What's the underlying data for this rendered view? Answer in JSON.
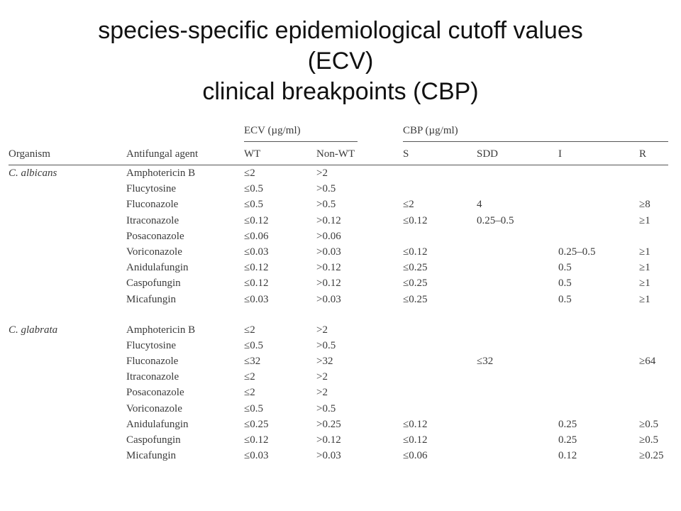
{
  "title": {
    "line1": "species-specific epidemiological cutoff values",
    "line2": "(ECV)",
    "line3": "clinical breakpoints (CBP)"
  },
  "table": {
    "group_headers": {
      "ecv": "ECV (µg/ml)",
      "cbp": "CBP (µg/ml)"
    },
    "columns": {
      "organism": "Organism",
      "agent": "Antifungal agent",
      "wt": "WT",
      "nonwt": "Non-WT",
      "s": "S",
      "sdd": "SDD",
      "i": "I",
      "r": "R"
    },
    "groups": [
      {
        "organism": "C. albicans",
        "rows": [
          {
            "agent": "Amphotericin B",
            "wt": "≤2",
            "nonwt": ">2",
            "s": "",
            "sdd": "",
            "i": "",
            "r": ""
          },
          {
            "agent": "Flucytosine",
            "wt": "≤0.5",
            "nonwt": ">0.5",
            "s": "",
            "sdd": "",
            "i": "",
            "r": ""
          },
          {
            "agent": "Fluconazole",
            "wt": "≤0.5",
            "nonwt": ">0.5",
            "s": "≤2",
            "sdd": "4",
            "i": "",
            "r": "≥8"
          },
          {
            "agent": "Itraconazole",
            "wt": "≤0.12",
            "nonwt": ">0.12",
            "s": "≤0.12",
            "sdd": "0.25–0.5",
            "i": "",
            "r": "≥1"
          },
          {
            "agent": "Posaconazole",
            "wt": "≤0.06",
            "nonwt": ">0.06",
            "s": "",
            "sdd": "",
            "i": "",
            "r": ""
          },
          {
            "agent": "Voriconazole",
            "wt": "≤0.03",
            "nonwt": ">0.03",
            "s": "≤0.12",
            "sdd": "",
            "i": "0.25–0.5",
            "r": "≥1"
          },
          {
            "agent": "Anidulafungin",
            "wt": "≤0.12",
            "nonwt": ">0.12",
            "s": "≤0.25",
            "sdd": "",
            "i": "0.5",
            "r": "≥1"
          },
          {
            "agent": "Caspofungin",
            "wt": "≤0.12",
            "nonwt": ">0.12",
            "s": "≤0.25",
            "sdd": "",
            "i": "0.5",
            "r": "≥1"
          },
          {
            "agent": "Micafungin",
            "wt": "≤0.03",
            "nonwt": ">0.03",
            "s": "≤0.25",
            "sdd": "",
            "i": "0.5",
            "r": "≥1"
          }
        ]
      },
      {
        "organism": "C. glabrata",
        "rows": [
          {
            "agent": "Amphotericin B",
            "wt": "≤2",
            "nonwt": ">2",
            "s": "",
            "sdd": "",
            "i": "",
            "r": ""
          },
          {
            "agent": "Flucytosine",
            "wt": "≤0.5",
            "nonwt": ">0.5",
            "s": "",
            "sdd": "",
            "i": "",
            "r": ""
          },
          {
            "agent": "Fluconazole",
            "wt": "≤32",
            "nonwt": ">32",
            "s": "",
            "sdd": "≤32",
            "i": "",
            "r": "≥64"
          },
          {
            "agent": "Itraconazole",
            "wt": "≤2",
            "nonwt": ">2",
            "s": "",
            "sdd": "",
            "i": "",
            "r": ""
          },
          {
            "agent": "Posaconazole",
            "wt": "≤2",
            "nonwt": ">2",
            "s": "",
            "sdd": "",
            "i": "",
            "r": ""
          },
          {
            "agent": "Voriconazole",
            "wt": "≤0.5",
            "nonwt": ">0.5",
            "s": "",
            "sdd": "",
            "i": "",
            "r": ""
          },
          {
            "agent": "Anidulafungin",
            "wt": "≤0.25",
            "nonwt": ">0.25",
            "s": "≤0.12",
            "sdd": "",
            "i": "0.25",
            "r": "≥0.5"
          },
          {
            "agent": "Caspofungin",
            "wt": "≤0.12",
            "nonwt": ">0.12",
            "s": "≤0.12",
            "sdd": "",
            "i": "0.25",
            "r": "≥0.5"
          },
          {
            "agent": "Micafungin",
            "wt": "≤0.03",
            "nonwt": ">0.03",
            "s": "≤0.06",
            "sdd": "",
            "i": "0.12",
            "r": "≥0.25"
          }
        ]
      }
    ]
  }
}
